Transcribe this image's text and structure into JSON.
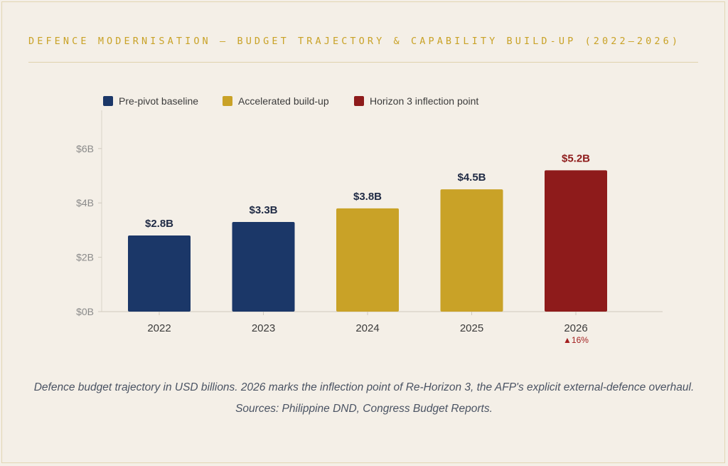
{
  "header": {
    "title": "DEFENCE MODERNISATION — BUDGET TRAJECTORY & CAPABILITY BUILD-UP (2022–2026)"
  },
  "legend": [
    {
      "label": "Pre-pivot baseline",
      "color": "#1b3768"
    },
    {
      "label": "Accelerated build-up",
      "color": "#c9a227"
    },
    {
      "label": "Horizon 3 inflection point",
      "color": "#8e1b1b"
    }
  ],
  "chart_data": {
    "type": "bar",
    "categories": [
      "2022",
      "2023",
      "2024",
      "2025",
      "2026"
    ],
    "values": [
      2.8,
      3.3,
      3.8,
      4.5,
      5.2
    ],
    "data_labels": [
      "$2.8B",
      "$3.3B",
      "$3.8B",
      "$4.5B",
      "$5.2B"
    ],
    "bar_colors": [
      "#1b3768",
      "#1b3768",
      "#c9a227",
      "#c9a227",
      "#8e1b1b"
    ],
    "bar_groups": [
      "Pre-pivot baseline",
      "Pre-pivot baseline",
      "Accelerated build-up",
      "Accelerated build-up",
      "Horizon 3 inflection point"
    ],
    "ylim": [
      0,
      6
    ],
    "yticks": [
      0,
      2,
      4,
      6
    ],
    "ytick_labels": [
      "$0B",
      "$2B",
      "$4B",
      "$6B"
    ],
    "annotations": [
      {
        "category": "2026",
        "text": "▲16%",
        "color": "#a31f1f"
      }
    ],
    "grid": false,
    "legend_position": "top-left"
  },
  "caption": "Defence budget trajectory in USD billions. 2026 marks the inflection point of Re-Horizon 3, the AFP's explicit external-defence overhaul. Sources: Philippine DND, Congress Budget Reports."
}
